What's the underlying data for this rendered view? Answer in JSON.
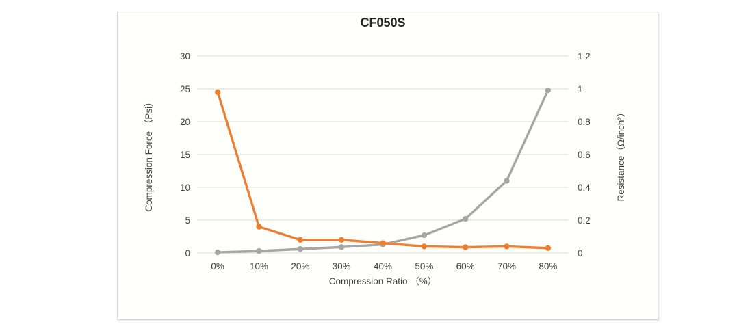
{
  "page": {
    "background": "#ffffff"
  },
  "chart_data": {
    "type": "line",
    "title": "CF050S",
    "xlabel": "Compression Ratio （%）",
    "categories": [
      "0%",
      "10%",
      "20%",
      "30%",
      "40%",
      "50%",
      "60%",
      "70%",
      "80%"
    ],
    "y_left": {
      "label": "Compression Force （Psi）",
      "min": 0,
      "max": 30,
      "ticks": [
        "0",
        "5",
        "10",
        "15",
        "20",
        "25",
        "30"
      ]
    },
    "y_right": {
      "label": "Resistance（Ω/inch²）",
      "min": 0,
      "max": 1.2,
      "ticks": [
        "0",
        "0.2",
        "0.4",
        "0.6",
        "0.8",
        "1",
        "1.2"
      ]
    },
    "series": [
      {
        "name": "Compression Force (Psi)",
        "axis": "left",
        "color": "#A6A6A6",
        "values": [
          0.1,
          0.3,
          0.6,
          0.9,
          1.3,
          2.7,
          5.2,
          11,
          24.8
        ]
      },
      {
        "name": "Resistance (Ω/inch²)",
        "axis": "right",
        "color": "#ED7D31",
        "values": [
          0.98,
          0.16,
          0.08,
          0.08,
          0.06,
          0.04,
          0.035,
          0.04,
          0.03
        ]
      }
    ],
    "grid": true,
    "legend": "none",
    "gridline_color": "#D9D9D9",
    "text_color": "#404040",
    "title_color": "#262626"
  }
}
